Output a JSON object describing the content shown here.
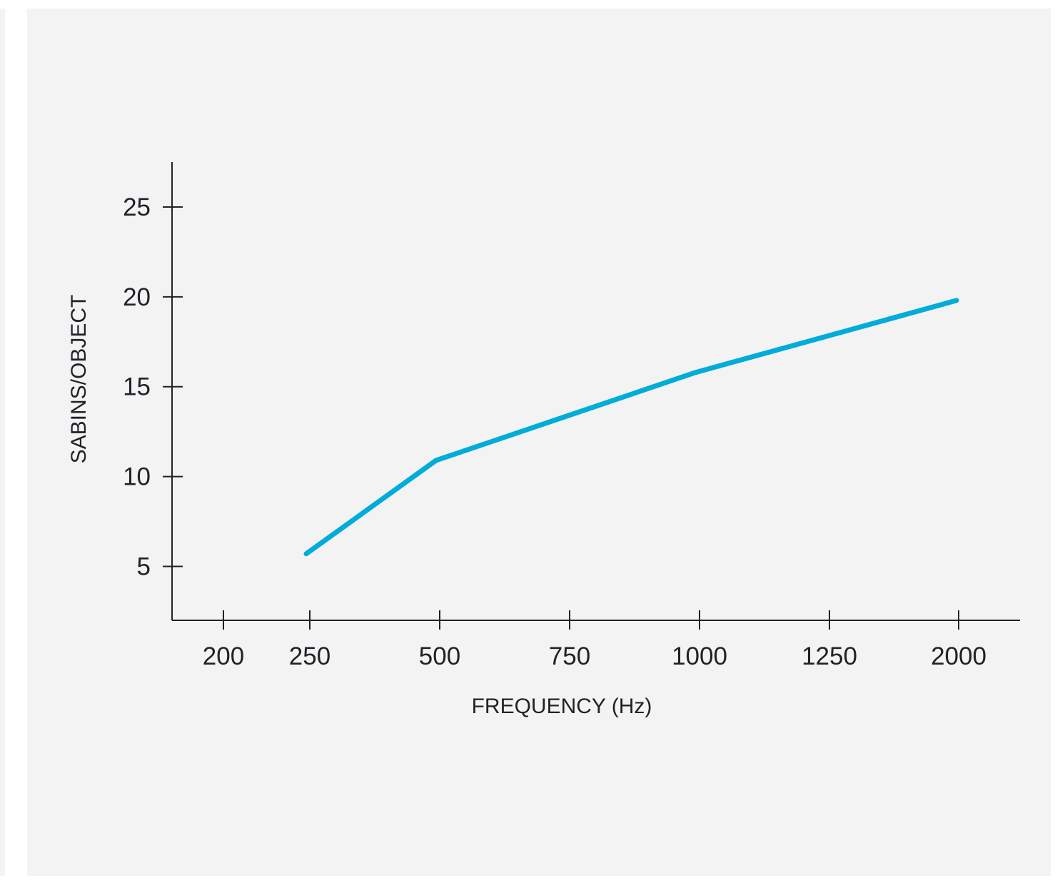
{
  "chart_data": {
    "type": "line",
    "title": "",
    "xlabel": "FREQUENCY (Hz)",
    "ylabel": "SABINS/OBJECT",
    "x_tick_labels": [
      "200",
      "250",
      "500",
      "750",
      "1000",
      "1250",
      "2000"
    ],
    "y_tick_labels": [
      "5",
      "10",
      "15",
      "20",
      "25"
    ],
    "y_ticks": [
      5,
      10,
      15,
      20,
      25
    ],
    "ylim": [
      2,
      27.5
    ],
    "series": [
      {
        "x": [
          "250",
          "500",
          "1000",
          "2000"
        ],
        "values": [
          5.7,
          10.9,
          15.8,
          19.8
        ]
      }
    ],
    "grid": false,
    "legend": "none"
  },
  "colors": {
    "line": "#00acd9",
    "axis": "#1f2328",
    "background": "#f3f3f3"
  }
}
